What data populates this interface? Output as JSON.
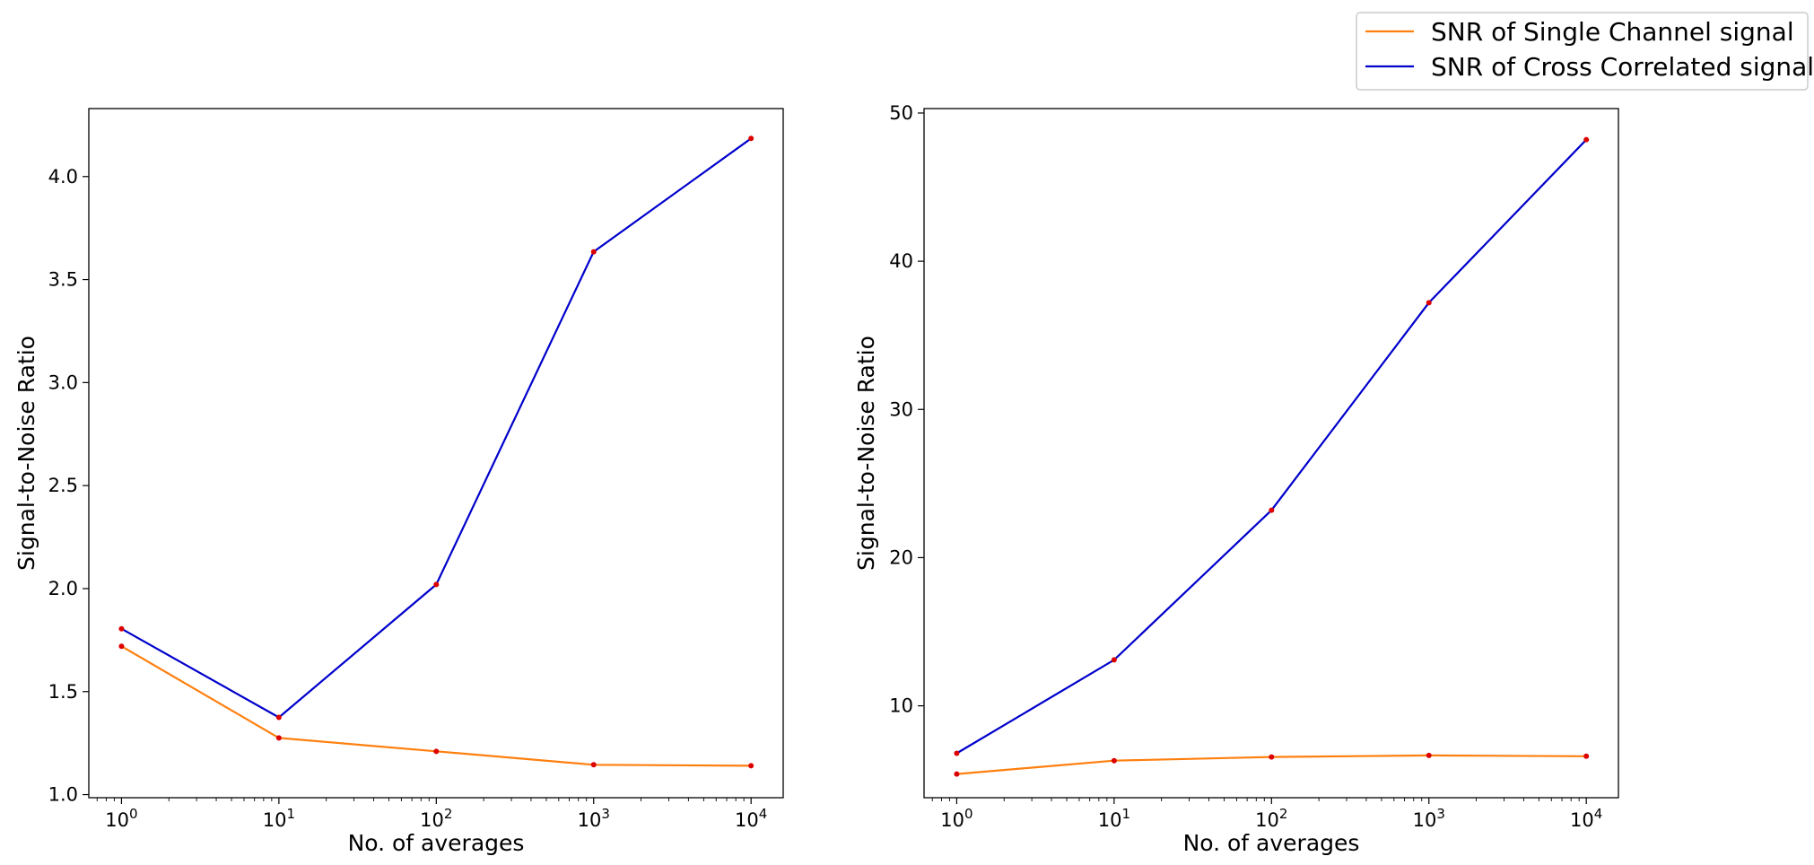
{
  "legend": {
    "placement": "top-right",
    "entries": [
      {
        "label": "SNR of Single Channel signal",
        "color": "#ff7f0e"
      },
      {
        "label": "SNR of Cross Correlated signal",
        "color": "#0000cc"
      }
    ]
  },
  "colors": {
    "single": "#ff7f0e",
    "cross": "#0000cc",
    "marker": "#dd0000"
  },
  "chart_data": [
    {
      "type": "line",
      "xscale": "log",
      "x": [
        1,
        10,
        100,
        1000,
        10000
      ],
      "xticks": [
        {
          "base": "10",
          "exp": "0"
        },
        {
          "base": "10",
          "exp": "1"
        },
        {
          "base": "10",
          "exp": "2"
        },
        {
          "base": "10",
          "exp": "3"
        },
        {
          "base": "10",
          "exp": "4"
        }
      ],
      "xlim": [
        0.62,
        16000
      ],
      "ylim": [
        0.985,
        4.33
      ],
      "yticks": [
        1.0,
        1.5,
        2.0,
        2.5,
        3.0,
        3.5,
        4.0
      ],
      "ytick_labels": [
        "1.0",
        "1.5",
        "2.0",
        "2.5",
        "3.0",
        "3.5",
        "4.0"
      ],
      "xlabel": "No. of averages",
      "ylabel": "Signal-to-Noise Ratio",
      "grid": false,
      "series": [
        {
          "name": "SNR of Single Channel signal",
          "values": [
            1.72,
            1.275,
            1.21,
            1.145,
            1.14
          ]
        },
        {
          "name": "SNR of Cross Correlated signal",
          "values": [
            1.805,
            1.375,
            2.02,
            3.635,
            4.185
          ]
        }
      ]
    },
    {
      "type": "line",
      "xscale": "log",
      "x": [
        1,
        10,
        100,
        1000,
        10000
      ],
      "xticks": [
        {
          "base": "10",
          "exp": "0"
        },
        {
          "base": "10",
          "exp": "1"
        },
        {
          "base": "10",
          "exp": "2"
        },
        {
          "base": "10",
          "exp": "3"
        },
        {
          "base": "10",
          "exp": "4"
        }
      ],
      "xlim": [
        0.62,
        16000
      ],
      "ylim": [
        3.8,
        50.3
      ],
      "yticks": [
        10,
        20,
        30,
        40,
        50
      ],
      "ytick_labels": [
        "10",
        "20",
        "30",
        "40",
        "50"
      ],
      "xlabel": "No. of averages",
      "ylabel": "Signal-to-Noise Ratio",
      "grid": false,
      "series": [
        {
          "name": "SNR of Single Channel signal",
          "values": [
            5.4,
            6.3,
            6.55,
            6.65,
            6.6
          ]
        },
        {
          "name": "SNR of Cross Correlated signal",
          "values": [
            6.8,
            13.1,
            23.2,
            37.2,
            48.2
          ]
        }
      ]
    }
  ]
}
